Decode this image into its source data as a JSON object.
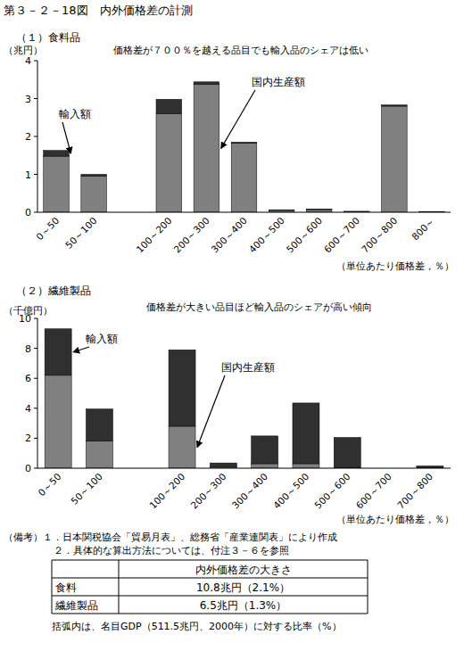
{
  "title": "第３－２－18図　内外価格差の計測",
  "chart_data": [
    {
      "type": "bar",
      "stacked": true,
      "title": "（１）食料品",
      "subtitle": "価格差が７００％を越える品目でも輸入品のシェアは低い",
      "y_label": "（兆円）",
      "x_label": "（単位あたり価格差，％）",
      "categories": [
        "0～50",
        "50～100",
        null,
        "100～200",
        "200～300",
        "300～400",
        "400～500",
        "500～600",
        "600～700",
        "700～800",
        "800～"
      ],
      "series": [
        {
          "name": "国内生産額",
          "color": "#808080",
          "values": [
            1.48,
            0.95,
            null,
            2.6,
            3.37,
            1.82,
            0.05,
            0.07,
            0.02,
            2.8,
            0.015
          ]
        },
        {
          "name": "輸入額",
          "color": "#303030",
          "values": [
            0.15,
            0.05,
            null,
            0.38,
            0.07,
            0.03,
            0.01,
            0.01,
            0.005,
            0.03,
            0.005
          ]
        }
      ],
      "ylim": [
        0,
        4
      ],
      "yticks": [
        0,
        1,
        2,
        3,
        4
      ],
      "grid": false
    },
    {
      "type": "bar",
      "stacked": true,
      "title": "（２）繊維製品",
      "subtitle": "価格差が大きい品目ほど輸入品のシェアが高い傾向",
      "y_label": "（千億円）",
      "x_label": "（単位あたり価格差，％）",
      "categories": [
        "0～50",
        "50～100",
        null,
        "100～200",
        "200～300",
        "300～400",
        "400～500",
        "500～600",
        "600～700",
        "700～800"
      ],
      "series": [
        {
          "name": "国内生産額",
          "color": "#808080",
          "values": [
            6.2,
            1.8,
            null,
            2.8,
            0.1,
            0.3,
            0.3,
            0.05,
            0,
            0.05
          ]
        },
        {
          "name": "輸入額",
          "color": "#303030",
          "values": [
            3.1,
            2.15,
            null,
            5.1,
            0.25,
            1.85,
            4.05,
            2.0,
            0,
            0.1
          ]
        }
      ],
      "ylim": [
        0,
        10
      ],
      "yticks": [
        0,
        2,
        4,
        6,
        8,
        10
      ],
      "grid": false
    }
  ],
  "notes": [
    "（備考）１．日本関税協会「貿易月表」、総務省「産業連関表」により作成",
    "２．具体的な算出方法については、付注３－６を参照"
  ],
  "table": {
    "header": "内外価格差の大きさ",
    "rows": [
      [
        "食料",
        "10.8兆円（2.1%）"
      ],
      [
        "繊維製品",
        "6.5兆円（1.3%）"
      ]
    ]
  },
  "table_note": "括弧内は、名目GDP（511.5兆円、2000年）に対する比率（%）"
}
